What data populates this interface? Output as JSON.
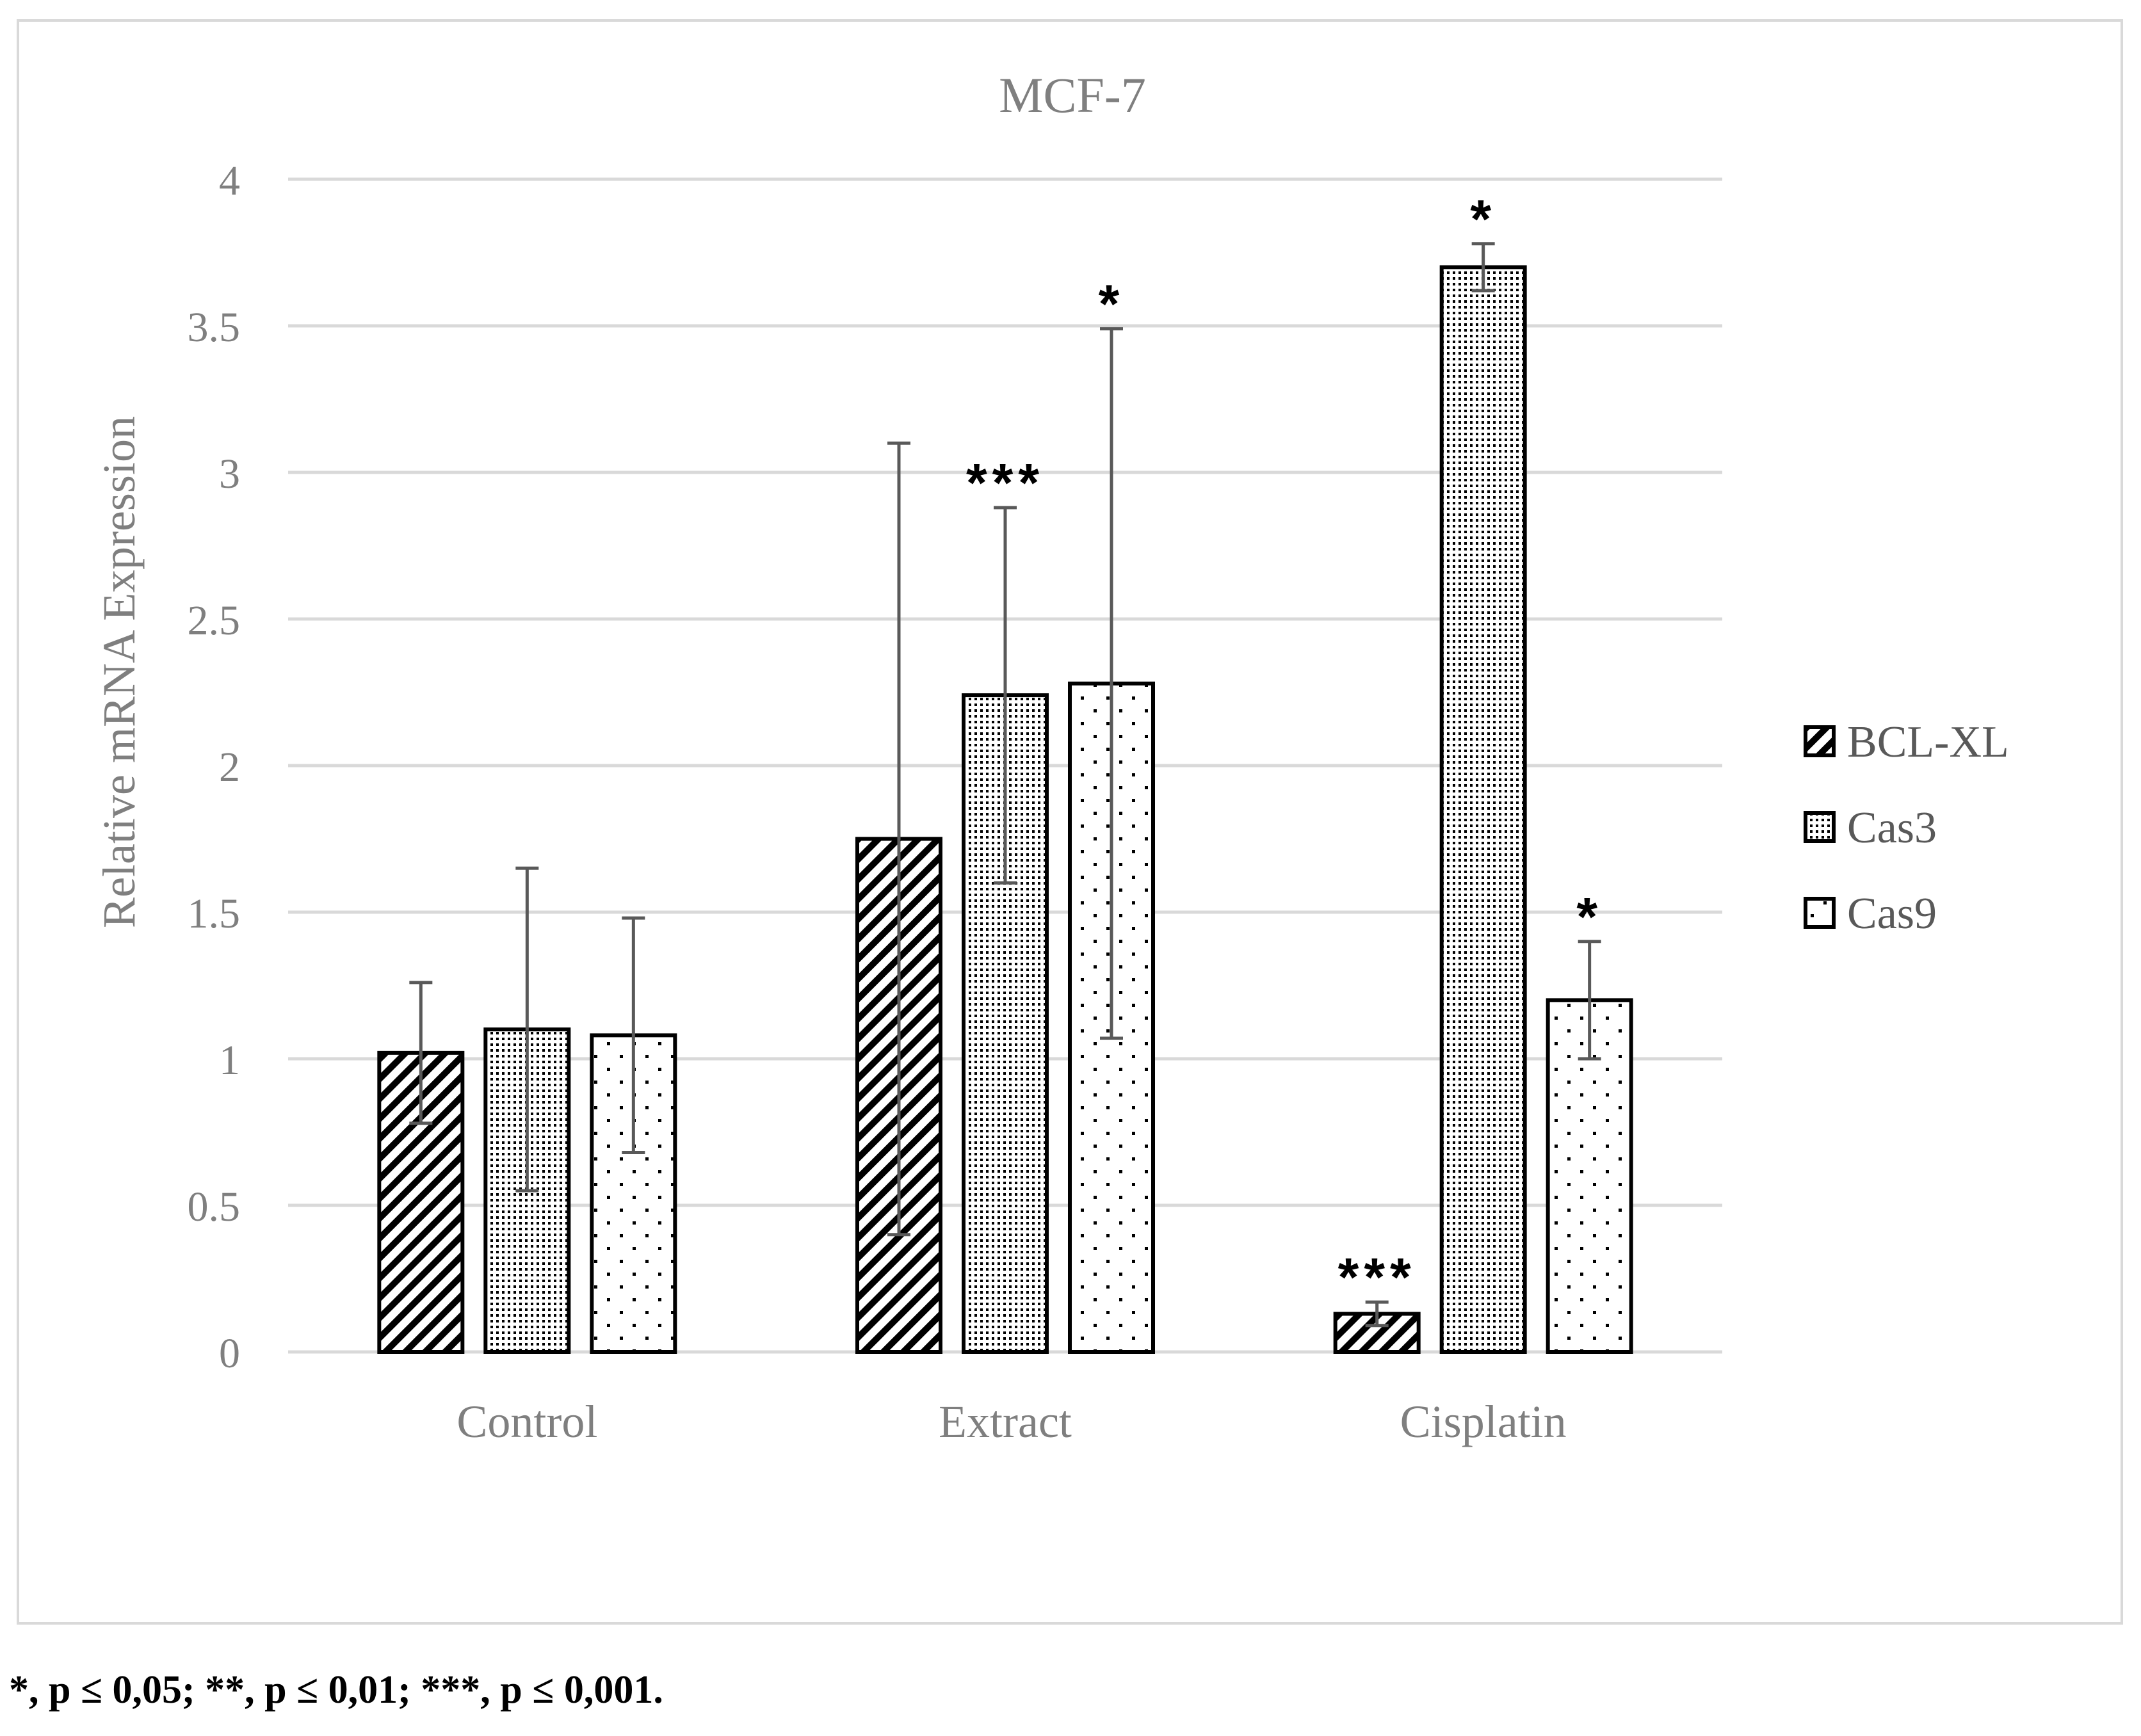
{
  "chart_data": {
    "type": "bar",
    "title": "MCF-7",
    "xlabel": "",
    "ylabel": "Relative mRNA Expression",
    "ylim": [
      0,
      4
    ],
    "yticks": [
      "0",
      "0.5",
      "1",
      "1.5",
      "2",
      "2.5",
      "3",
      "3.5",
      "4"
    ],
    "categories": [
      "Control",
      "Extract",
      "Cisplatin"
    ],
    "grid": true,
    "legend_position": "right",
    "series": [
      {
        "name": "BCL-XL",
        "pattern": "diagonal-hatch",
        "values": [
          1.02,
          1.75,
          0.13
        ],
        "errors": [
          0.24,
          1.35,
          0.04
        ],
        "significance": [
          "",
          "",
          "***"
        ]
      },
      {
        "name": "Cas3",
        "pattern": "dense-dots",
        "values": [
          1.1,
          2.24,
          3.7
        ],
        "errors": [
          0.55,
          0.64,
          0.08
        ],
        "significance": [
          "",
          "***",
          "*"
        ]
      },
      {
        "name": "Cas9",
        "pattern": "sparse-dots",
        "values": [
          1.08,
          2.28,
          1.2
        ],
        "errors": [
          0.4,
          1.21,
          0.2
        ],
        "significance": [
          "",
          "*",
          "*"
        ]
      }
    ]
  },
  "footnote": "*, p ≤ 0,05; **, p ≤ 0,01; ***, p ≤ 0,001."
}
